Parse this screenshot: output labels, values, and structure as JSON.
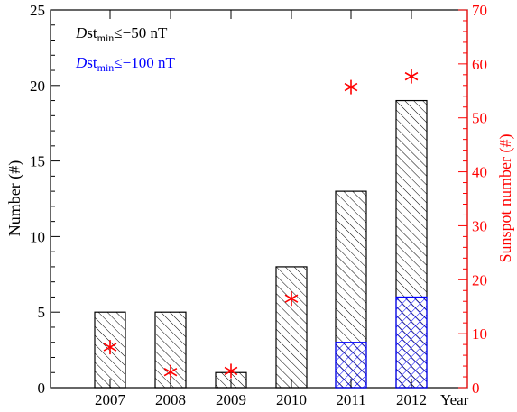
{
  "chart_data": {
    "type": "bar",
    "categories": [
      "2007",
      "2008",
      "2009",
      "2010",
      "2011",
      "2012"
    ],
    "x_axis_extra_label": "Year",
    "series": [
      {
        "name": "Dst_min ≤ −50 nT",
        "values": [
          5,
          5,
          1,
          8,
          13,
          19
        ],
        "pattern": "diagonal-hatch",
        "color": "#000000"
      },
      {
        "name": "Dst_min ≤ −100 nT",
        "values": [
          0,
          0,
          0,
          0,
          3,
          6
        ],
        "pattern": "cross-hatch",
        "color": "#0000ff"
      }
    ],
    "sunspot_series": {
      "values": [
        7.5,
        2.9,
        3.1,
        16.5,
        55.7,
        57.7
      ],
      "marker": "asterisk",
      "color": "#ff0000"
    },
    "ylabel": "Number (#)",
    "ylim": [
      0,
      25
    ],
    "yticks": [
      0,
      5,
      10,
      15,
      20,
      25
    ],
    "y2label": "Sunspot number (#)",
    "y2lim": [
      0,
      70
    ],
    "y2ticks": [
      0,
      10,
      20,
      30,
      40,
      50,
      60,
      70
    ],
    "legend": [
      {
        "italic": "D",
        "main": "st",
        "sub": "min",
        "rest": "≤−50 nT",
        "color": "#000000"
      },
      {
        "italic": "D",
        "main": "st",
        "sub": "min",
        "rest": "≤−100 nT",
        "color": "#0000ff"
      }
    ],
    "legend_position": "top-left",
    "colors": {
      "axis": "#000000",
      "right_axis": "#ff0000",
      "blue": "#0000ff",
      "star": "#ff0000"
    }
  }
}
